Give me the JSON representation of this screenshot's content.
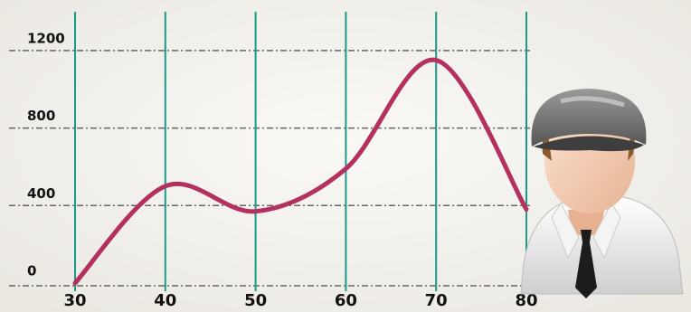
{
  "chart_data": {
    "type": "line",
    "x": [
      30,
      40,
      50,
      60,
      70,
      80
    ],
    "series": [
      {
        "color": "#b3305f",
        "values": [
          0,
          500,
          370,
          590,
          1150,
          380
        ]
      }
    ],
    "xlim": [
      30,
      80
    ],
    "xticks": [
      30,
      40,
      50,
      60,
      70,
      80
    ],
    "ylim": [
      0,
      1400
    ],
    "yticks": [
      0,
      400,
      800,
      1200
    ],
    "grid": true,
    "smooth": true
  }
}
